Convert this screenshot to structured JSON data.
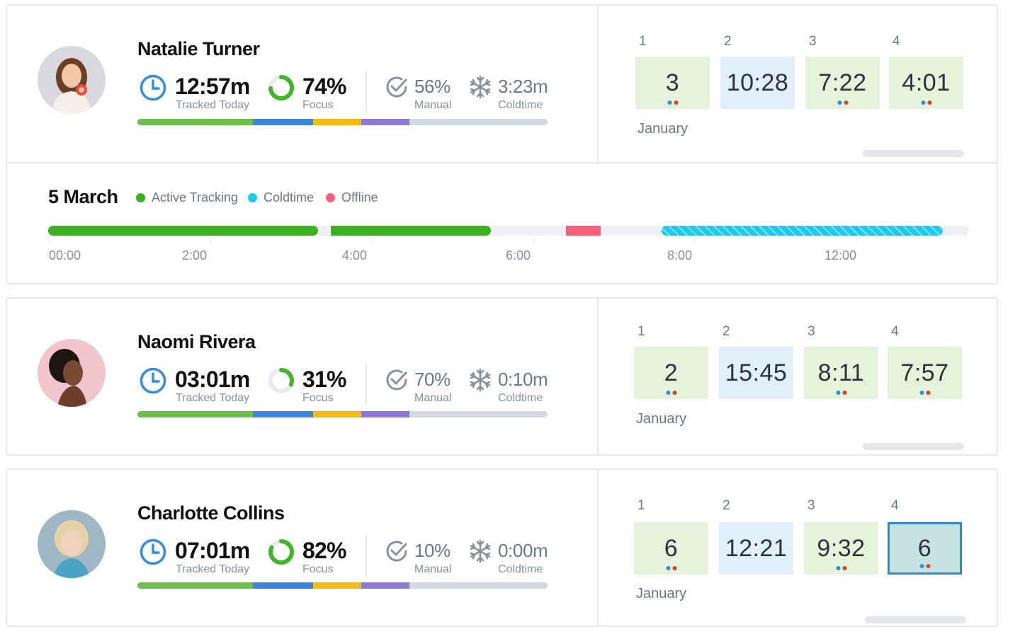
{
  "colors": {
    "green": "#6cc04a",
    "blue": "#3a86e0",
    "yellow": "#f7bb0f",
    "purple": "#8d77d8",
    "gray": "#d3d9e2",
    "active": "#3bb21d",
    "coldtime": "#1ec9ec",
    "offline": "#f95f78"
  },
  "users": [
    {
      "name": "Natalie Turner",
      "tracked": "12:57m",
      "tracked_label": "Tracked Today",
      "focus": "74%",
      "focus_value": 0.74,
      "focus_label": "Focus",
      "manual": "56%",
      "manual_label": "Manual",
      "coldtime": "3:23m",
      "coldtime_label": "Coldtime",
      "columns": [
        "1",
        "2",
        "3",
        "4"
      ],
      "cells": [
        {
          "value": "3",
          "kind": "green",
          "dots": true
        },
        {
          "value": "10:28",
          "kind": "blue",
          "dots": false
        },
        {
          "value": "7:22",
          "kind": "green",
          "dots": true
        },
        {
          "value": "4:01",
          "kind": "green",
          "dots": true
        }
      ],
      "month": "January"
    },
    {
      "name": "Naomi Rivera",
      "tracked": "03:01m",
      "tracked_label": "Tracked Today",
      "focus": "31%",
      "focus_value": 0.31,
      "focus_label": "Focus",
      "manual": "70%",
      "manual_label": "Manual",
      "coldtime": "0:10m",
      "coldtime_label": "Coldtime",
      "columns": [
        "1",
        "2",
        "3",
        "4"
      ],
      "cells": [
        {
          "value": "2",
          "kind": "green",
          "dots": true
        },
        {
          "value": "15:45",
          "kind": "blue",
          "dots": false
        },
        {
          "value": "8:11",
          "kind": "green",
          "dots": true
        },
        {
          "value": "7:57",
          "kind": "green",
          "dots": true
        }
      ],
      "month": "January"
    },
    {
      "name": "Charlotte Collins",
      "tracked": "07:01m",
      "tracked_label": "Tracked Today",
      "focus": "82%",
      "focus_value": 0.82,
      "focus_label": "Focus",
      "manual": "10%",
      "manual_label": "Manual",
      "coldtime": "0:00m",
      "coldtime_label": "Coldtime",
      "columns": [
        "1",
        "2",
        "3",
        "4"
      ],
      "cells": [
        {
          "value": "6",
          "kind": "green",
          "dots": true
        },
        {
          "value": "12:21",
          "kind": "blue",
          "dots": false
        },
        {
          "value": "9:32",
          "kind": "green",
          "dots": true
        },
        {
          "value": "6",
          "kind": "sel",
          "dots": true
        }
      ],
      "month": "January"
    }
  ],
  "timeline": {
    "date": "5 March",
    "legend": [
      "Active Tracking",
      "Coldtime",
      "Offline"
    ],
    "ticks": [
      "00:00",
      "2:00",
      "4:00",
      "6:00",
      "8:00",
      "12:00"
    ]
  }
}
